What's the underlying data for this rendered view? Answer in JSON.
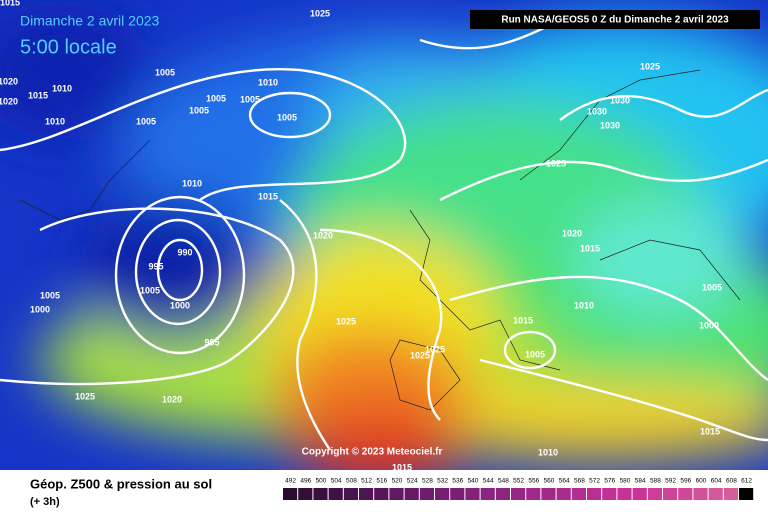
{
  "header": {
    "date": "Dimanche 2 avril 2023",
    "local_time": "5:00 locale",
    "run": "Run NASA/GEOS5 0 Z du Dimanche 2 avril 2023"
  },
  "copyright": "Copyright © 2023 Meteociel.fr",
  "footer": {
    "title": "Géop. Z500 & pression au sol",
    "lead": "(+ 3h)"
  },
  "scale": {
    "labels": [
      "492",
      "496",
      "500",
      "504",
      "508",
      "512",
      "516",
      "520",
      "524",
      "528",
      "532",
      "536",
      "540",
      "544",
      "548",
      "552",
      "556",
      "560",
      "564",
      "568",
      "572",
      "576",
      "580",
      "584",
      "588",
      "592",
      "596",
      "600",
      "604",
      "608",
      "612"
    ]
  },
  "isobars": {
    "labels": [
      "1015",
      "1025",
      "1020",
      "1020",
      "1005",
      "1010",
      "1010",
      "1015",
      "1005",
      "1005",
      "1005",
      "1010",
      "1005",
      "1005",
      "1025",
      "1030",
      "1030",
      "1030",
      "1025",
      "1010",
      "1015",
      "1020",
      "1020",
      "1015",
      "990",
      "995",
      "1005",
      "1005",
      "1000",
      "1000",
      "1010",
      "1005",
      "1015",
      "1000",
      "1025",
      "995",
      "1025",
      "1025",
      "1005",
      "1025",
      "1020",
      "1015",
      "1010",
      "1015"
    ]
  }
}
